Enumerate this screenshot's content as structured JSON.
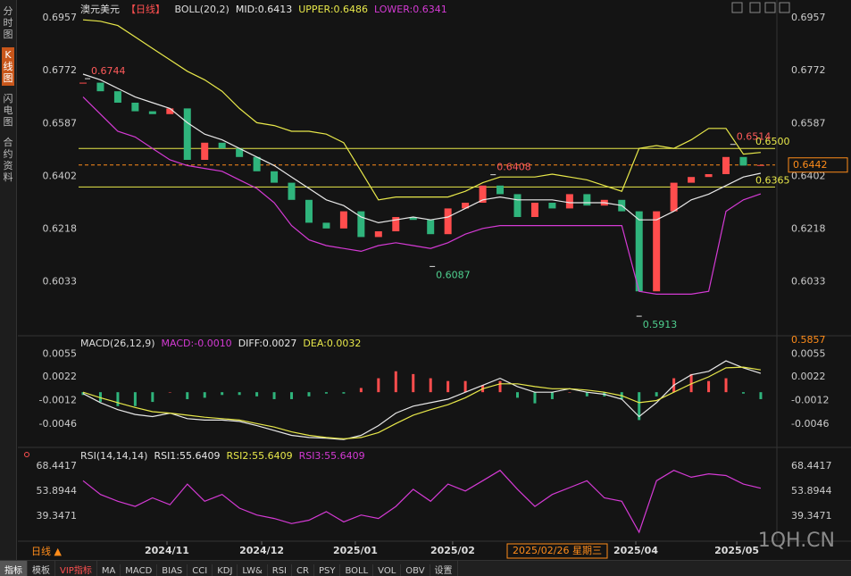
{
  "header": {
    "symbol": "澳元美元",
    "period": "【日线】",
    "period_mark": "日线 ▲",
    "cursor_date": "2025/02/26 星期三",
    "logo": "1QH.CN"
  },
  "sidebar": [
    "分时图",
    "K线图",
    "闪电图",
    "合约资料"
  ],
  "toolbar": [
    "指标",
    "模板",
    "VIP指标",
    "MA",
    "MACD",
    "BIAS",
    "CCI",
    "KDJ",
    "LW&",
    "RSI",
    "CR",
    "PSY",
    "BOLL",
    "VOL",
    "OBV",
    "设置"
  ],
  "chart_data": [
    {
      "type": "line",
      "title": "BOLL(20,2)",
      "ylim": [
        0.5857,
        0.6988
      ],
      "yticks": [
        0.6957,
        0.6772,
        0.6587,
        0.6402,
        0.6218,
        0.6033
      ],
      "series": [
        {
          "type": "candle",
          "colors": {
            "up": "#ff4d4d",
            "down": "#2fb47c"
          },
          "values": [
            0.673,
            0.67,
            0.666,
            0.663,
            0.662,
            0.664,
            0.646,
            0.652,
            0.65,
            0.647,
            0.642,
            0.638,
            0.632,
            0.624,
            0.622,
            0.628,
            0.619,
            0.621,
            0.626,
            0.625,
            0.62,
            0.629,
            0.631,
            0.637,
            0.634,
            0.626,
            0.631,
            0.629,
            0.634,
            0.63,
            0.632,
            0.628,
            0.6,
            0.628,
            0.638,
            0.64,
            0.641,
            0.647,
            0.644,
            0.6442
          ]
        },
        {
          "type": "line",
          "name": "MID:0.6413",
          "color": "#e8e8e8",
          "values": [
            0.676,
            0.674,
            0.671,
            0.668,
            0.666,
            0.664,
            0.659,
            0.655,
            0.653,
            0.65,
            0.647,
            0.644,
            0.64,
            0.636,
            0.632,
            0.63,
            0.626,
            0.624,
            0.625,
            0.626,
            0.625,
            0.626,
            0.629,
            0.632,
            0.633,
            0.632,
            0.632,
            0.632,
            0.631,
            0.631,
            0.631,
            0.63,
            0.625,
            0.625,
            0.628,
            0.632,
            0.634,
            0.637,
            0.64,
            0.6413
          ]
        },
        {
          "type": "line",
          "name": "UPPER:0.6486",
          "color": "#e8e84a",
          "values": [
            0.695,
            0.6945,
            0.693,
            0.689,
            0.685,
            0.681,
            0.677,
            0.674,
            0.67,
            0.664,
            0.659,
            0.658,
            0.656,
            0.656,
            0.655,
            0.652,
            0.642,
            0.632,
            0.633,
            0.633,
            0.633,
            0.633,
            0.635,
            0.638,
            0.64,
            0.64,
            0.64,
            0.641,
            0.64,
            0.639,
            0.637,
            0.635,
            0.65,
            0.651,
            0.65,
            0.653,
            0.657,
            0.657,
            0.648,
            0.6486
          ]
        },
        {
          "type": "line",
          "name": "LOWER:0.6341",
          "color": "#d43ad4",
          "values": [
            0.668,
            0.662,
            0.656,
            0.654,
            0.65,
            0.646,
            0.644,
            0.643,
            0.642,
            0.639,
            0.636,
            0.631,
            0.623,
            0.618,
            0.616,
            0.615,
            0.614,
            0.616,
            0.617,
            0.616,
            0.615,
            0.617,
            0.62,
            0.622,
            0.623,
            0.623,
            0.623,
            0.623,
            0.623,
            0.623,
            0.623,
            0.623,
            0.6,
            0.599,
            0.599,
            0.599,
            0.6,
            0.628,
            0.632,
            0.6341
          ]
        }
      ],
      "hlines": [
        {
          "value": 0.65,
          "label": "0.6500",
          "color": "#e8e84a"
        },
        {
          "value": 0.6365,
          "label": "0.6365",
          "color": "#e8e84a"
        },
        {
          "value": 0.6442,
          "label": "0.6442",
          "color": "#ff8c1a",
          "dashed": true
        }
      ],
      "annotations": [
        {
          "x": 0.26,
          "y": 0.6744,
          "label": "0.6744",
          "color": "#ff5a5a"
        },
        {
          "x": 20.1,
          "y": 0.6087,
          "label": "0.6087",
          "color": "#4fd08f"
        },
        {
          "x": 23.6,
          "y": 0.6408,
          "label": "0.6408",
          "color": "#ff5a5a"
        },
        {
          "x": 32.0,
          "y": 0.5913,
          "label": "0.5913",
          "color": "#4fd08f"
        },
        {
          "x": 37.4,
          "y": 0.6514,
          "label": "0.6514",
          "color": "#ff5a5a"
        }
      ]
    },
    {
      "type": "bar",
      "title": "MACD(26,12,9)",
      "ylim": [
        -0.0078,
        0.0072
      ],
      "yticks": [
        0.0055,
        0.0022,
        -0.0012,
        -0.0046
      ],
      "series": [
        {
          "type": "bar",
          "name": "MACD:-0.0010",
          "color": "#d43ad4",
          "colors": {
            "up": "#ff4d4d",
            "down": "#2fb47c"
          },
          "values": [
            -0.0004,
            -0.0014,
            -0.002,
            -0.002,
            -0.0014,
            0.0,
            -0.001,
            -0.0008,
            -0.0004,
            -0.0004,
            -0.0006,
            -0.001,
            -0.001,
            -0.0006,
            -0.0002,
            -0.0002,
            0.0006,
            0.002,
            0.003,
            0.0026,
            0.002,
            0.0016,
            0.0016,
            0.001,
            0.0016,
            -0.0008,
            -0.0016,
            -0.001,
            0.0,
            -0.0006,
            -0.0006,
            -0.001,
            -0.004,
            -0.0006,
            0.002,
            0.0026,
            0.0016,
            0.002,
            -0.0002,
            -0.001
          ]
        },
        {
          "type": "line",
          "name": "DIFF:0.0027",
          "color": "#e8e8e8",
          "values": [
            -0.0002,
            -0.0015,
            -0.0025,
            -0.0032,
            -0.0035,
            -0.003,
            -0.0038,
            -0.004,
            -0.004,
            -0.0042,
            -0.0048,
            -0.0055,
            -0.0062,
            -0.0065,
            -0.0066,
            -0.0068,
            -0.0062,
            -0.0048,
            -0.003,
            -0.002,
            -0.0015,
            -0.001,
            0.0,
            0.001,
            0.002,
            0.0008,
            0.0,
            0.0,
            0.0005,
            0.0,
            -0.0003,
            -0.001,
            -0.0035,
            -0.0015,
            0.001,
            0.0025,
            0.003,
            0.0045,
            0.0035,
            0.0027
          ]
        },
        {
          "type": "line",
          "name": "DEA:0.0032",
          "color": "#e8e84a",
          "values": [
            0.0,
            -0.0008,
            -0.0015,
            -0.0022,
            -0.0028,
            -0.003,
            -0.0033,
            -0.0036,
            -0.0038,
            -0.004,
            -0.0045,
            -0.005,
            -0.0057,
            -0.0062,
            -0.0065,
            -0.0067,
            -0.0065,
            -0.0058,
            -0.0045,
            -0.0033,
            -0.0025,
            -0.0018,
            -0.0008,
            0.0005,
            0.0012,
            0.0012,
            0.0008,
            0.0005,
            0.0005,
            0.0003,
            0.0,
            -0.0005,
            -0.0015,
            -0.0012,
            0.0,
            0.0012,
            0.0022,
            0.0035,
            0.0036,
            0.0032
          ]
        }
      ]
    },
    {
      "type": "line",
      "title": "RSI(14,14,14)",
      "ylim": [
        25.3,
        77.3
      ],
      "yticks": [
        68.4417,
        53.8944,
        39.3471
      ],
      "legend": [
        {
          "label": "RSI1:55.6409",
          "color": "#e8e8e8"
        },
        {
          "label": "RSI2:55.6409",
          "color": "#e8e84a"
        },
        {
          "label": "RSI3:55.6409",
          "color": "#d43ad4"
        }
      ],
      "series": [
        {
          "type": "line",
          "color": "#d43ad4",
          "values": [
            60,
            52,
            48,
            45,
            50,
            46,
            58,
            48,
            52,
            44,
            40,
            38,
            35,
            37,
            42,
            36,
            40,
            38,
            45,
            55,
            48,
            58,
            54,
            60,
            66,
            55,
            45,
            52,
            56,
            60,
            50,
            48,
            30,
            60,
            66,
            62,
            64,
            63,
            58,
            55.6409
          ]
        }
      ],
      "xticks": [
        {
          "value": 4.83,
          "label": "2024/11"
        },
        {
          "value": 10.28,
          "label": "2024/12"
        },
        {
          "value": 15.67,
          "label": "2025/01"
        },
        {
          "value": 21.27,
          "label": "2025/02"
        },
        {
          "value": 31.81,
          "label": "2025/04"
        },
        {
          "value": 37.62,
          "label": "2025/05"
        }
      ]
    }
  ]
}
